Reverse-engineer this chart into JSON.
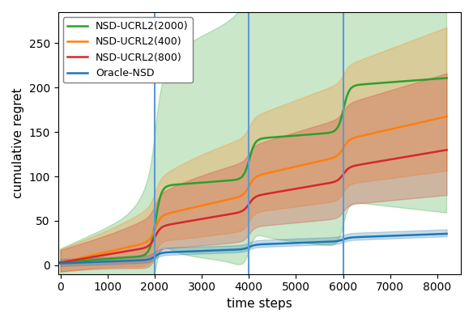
{
  "title": "",
  "xlabel": "time steps",
  "ylabel": "cumulative regret",
  "xlim": [
    -50,
    8500
  ],
  "ylim": [
    -10,
    285
  ],
  "xticks": [
    0,
    1000,
    2000,
    3000,
    4000,
    5000,
    6000,
    7000,
    8000
  ],
  "yticks": [
    0,
    50,
    100,
    150,
    200,
    250
  ],
  "vertical_lines": [
    2000,
    4000,
    6000
  ],
  "vline_color": "#5b9bd5",
  "figsize": [
    5.84,
    3.98
  ],
  "dpi": 100,
  "alpha_fill": 0.25
}
